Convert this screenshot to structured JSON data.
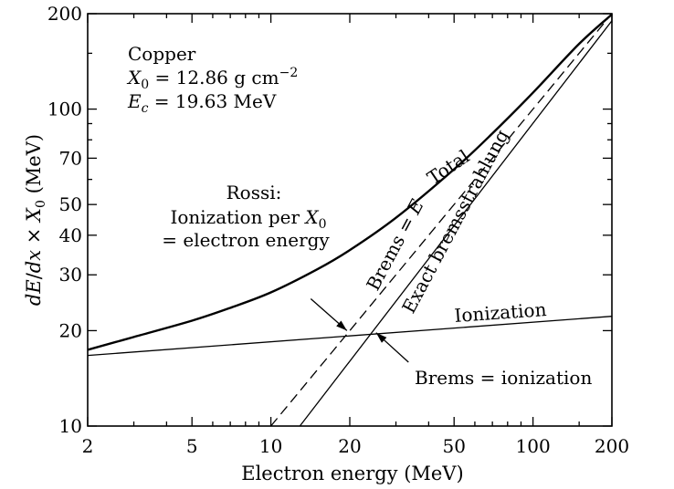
{
  "chart_data": {
    "type": "line",
    "xscale": "log",
    "yscale": "log",
    "xlim": [
      2,
      200
    ],
    "ylim": [
      10,
      200
    ],
    "xlabel": "Electron energy (MeV)",
    "ylabel": "dE/dx × X0 (MeV)",
    "x_ticks": [
      2,
      5,
      10,
      20,
      50,
      100,
      200
    ],
    "y_ticks": [
      10,
      20,
      30,
      40,
      50,
      70,
      100,
      200
    ],
    "grid": false,
    "info_box": {
      "material": "Copper",
      "x0_symbol": "X",
      "x0_sub": "0",
      "x0_value": " = 12.86 g cm",
      "x0_unit_exp": "−2",
      "ec_symbol": "E",
      "ec_sub": "c",
      "ec_value": " = 19.63 MeV"
    },
    "series": [
      {
        "name": "Total",
        "style": "solid-thick",
        "x": [
          2,
          3,
          5,
          7,
          10,
          15,
          20,
          30,
          50,
          70,
          100,
          150,
          200
        ],
        "y": [
          17.4,
          19.1,
          21.5,
          23.6,
          26.4,
          31.2,
          35.9,
          45.4,
          64.6,
          83.8,
          112.7,
          160.7,
          199
        ]
      },
      {
        "name": "Ionization",
        "style": "solid-thin",
        "x": [
          2,
          200
        ],
        "y": [
          16.7,
          22.2
        ]
      },
      {
        "name": "Brems = E",
        "style": "dashed",
        "x": [
          10,
          200
        ],
        "y": [
          10,
          200
        ]
      },
      {
        "name": "Exact bremsstrahlung",
        "style": "solid-thin",
        "x": [
          12.9,
          200
        ],
        "y": [
          10,
          190
        ]
      }
    ],
    "annotations": {
      "total": "Total",
      "ionization": "Ionization",
      "brems_e": "Brems = E",
      "exact_brems": "Exact bremsstrahlung",
      "rossi_line1": "Rossi:",
      "rossi_line2": "Ionization per ",
      "rossi_x0_symbol": "X",
      "rossi_x0_sub": "0",
      "rossi_line3": "= electron energy",
      "brems_ionization": "Brems = ionization"
    },
    "arrows": [
      {
        "name": "rossi-arrow",
        "from": [
          14.2,
          25.2
        ],
        "to": [
          19.5,
          20.0
        ]
      },
      {
        "name": "brems-ionization-arrow",
        "from": [
          33.5,
          15.9
        ],
        "to": [
          25.2,
          19.7
        ]
      }
    ]
  }
}
